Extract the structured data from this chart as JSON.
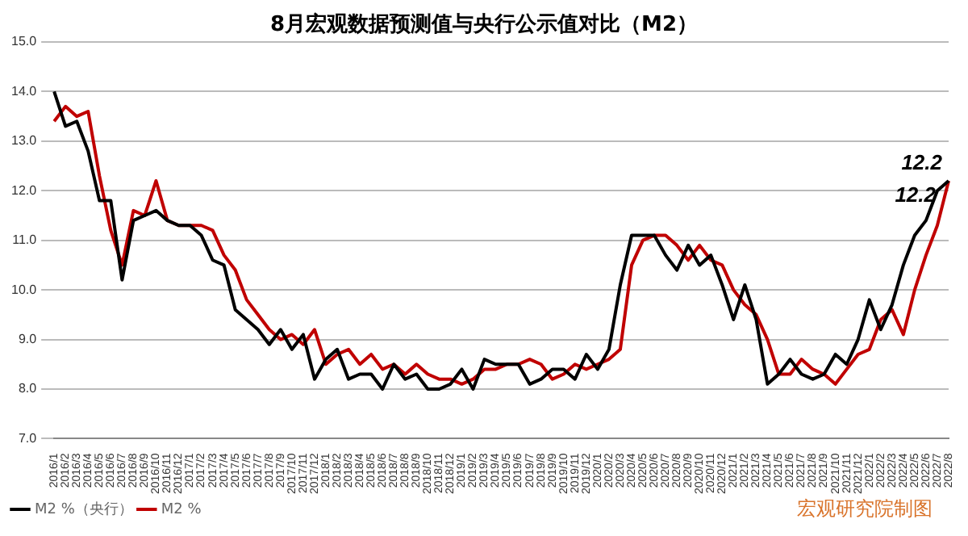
{
  "chart_data": {
    "type": "line",
    "title": "8月宏观数据预测值与央行公示值对比（M2）",
    "categories": [
      "2016/1",
      "2016/2",
      "2016/3",
      "2016/4",
      "2016/5",
      "2016/6",
      "2016/7",
      "2016/8",
      "2016/9",
      "2016/10",
      "2016/11",
      "2016/12",
      "2017/1",
      "2017/2",
      "2017/3",
      "2017/4",
      "2017/5",
      "2017/6",
      "2017/7",
      "2017/8",
      "2017/9",
      "2017/10",
      "2017/11",
      "2017/12",
      "2018/1",
      "2018/2",
      "2018/3",
      "2018/4",
      "2018/5",
      "2018/6",
      "2018/7",
      "2018/8",
      "2018/9",
      "2018/10",
      "2018/11",
      "2018/12",
      "2019/1",
      "2019/2",
      "2019/3",
      "2019/4",
      "2019/5",
      "2019/6",
      "2019/7",
      "2019/8",
      "2019/9",
      "2019/10",
      "2019/11",
      "2019/12",
      "2020/1",
      "2020/2",
      "2020/3",
      "2020/4",
      "2020/5",
      "2020/6",
      "2020/7",
      "2020/8",
      "2020/9",
      "2020/10",
      "2020/11",
      "2020/12",
      "2021/1",
      "2021/2",
      "2021/3",
      "2021/4",
      "2021/5",
      "2021/6",
      "2021/7",
      "2021/8",
      "2021/9",
      "2021/10",
      "2021/11",
      "2021/12",
      "2022/1",
      "2022/2",
      "2022/3",
      "2022/4",
      "2022/5",
      "2022/6",
      "2022/7",
      "2022/8"
    ],
    "series": [
      {
        "name": "M2 %（央行）",
        "color": "#000000",
        "values": [
          14.0,
          13.3,
          13.4,
          12.8,
          11.8,
          11.8,
          10.2,
          11.4,
          11.5,
          11.6,
          11.4,
          11.3,
          11.3,
          11.1,
          10.6,
          10.5,
          9.6,
          9.4,
          9.2,
          8.9,
          9.2,
          8.8,
          9.1,
          8.2,
          8.6,
          8.8,
          8.2,
          8.3,
          8.3,
          8.0,
          8.5,
          8.2,
          8.3,
          8.0,
          8.0,
          8.1,
          8.4,
          8.0,
          8.6,
          8.5,
          8.5,
          8.5,
          8.1,
          8.2,
          8.4,
          8.4,
          8.2,
          8.7,
          8.4,
          8.8,
          10.1,
          11.1,
          11.1,
          11.1,
          10.7,
          10.4,
          10.9,
          10.5,
          10.7,
          10.1,
          9.4,
          10.1,
          9.4,
          8.1,
          8.3,
          8.6,
          8.3,
          8.2,
          8.3,
          8.7,
          8.5,
          9.0,
          9.8,
          9.2,
          9.7,
          10.5,
          11.1,
          11.4,
          12.0,
          12.2
        ]
      },
      {
        "name": "M2 %",
        "color": "#c00000",
        "values": [
          13.4,
          13.7,
          13.5,
          13.6,
          12.3,
          11.2,
          10.5,
          11.6,
          11.5,
          12.2,
          11.4,
          11.3,
          11.3,
          11.3,
          11.2,
          10.7,
          10.4,
          9.8,
          9.5,
          9.2,
          9.0,
          9.1,
          8.9,
          9.2,
          8.5,
          8.7,
          8.8,
          8.5,
          8.7,
          8.4,
          8.5,
          8.3,
          8.5,
          8.3,
          8.2,
          8.2,
          8.1,
          8.2,
          8.4,
          8.4,
          8.5,
          8.5,
          8.6,
          8.5,
          8.2,
          8.3,
          8.5,
          8.4,
          8.5,
          8.6,
          8.8,
          10.5,
          11.0,
          11.1,
          11.1,
          10.9,
          10.6,
          10.9,
          10.6,
          10.5,
          10.0,
          9.7,
          9.5,
          9.0,
          8.3,
          8.3,
          8.6,
          8.4,
          8.3,
          8.1,
          8.4,
          8.7,
          8.8,
          9.4,
          9.6,
          9.1,
          10.0,
          10.7,
          11.3,
          12.2
        ]
      }
    ],
    "ylim": [
      7,
      15
    ],
    "yticks": [
      {
        "value": 7,
        "label": "7.0"
      },
      {
        "value": 8,
        "label": "8.0"
      },
      {
        "value": 9,
        "label": "9.0"
      },
      {
        "value": 10,
        "label": "10.0"
      },
      {
        "value": 11,
        "label": "11.0"
      },
      {
        "value": 12,
        "label": "12.0"
      },
      {
        "value": 13,
        "label": "13.0"
      },
      {
        "value": 14,
        "label": "14.0"
      },
      {
        "value": 15,
        "label": "15.0"
      }
    ],
    "grid": "y",
    "legend": "bottom left",
    "marker": "none",
    "line_style": "solid",
    "annotations": [
      {
        "text": "12.2",
        "x": "2022/8",
        "y": 12.2
      },
      {
        "text": "12.2",
        "x": "2022/8",
        "y": 12.2
      },
      "宏观研究院制图"
    ]
  }
}
